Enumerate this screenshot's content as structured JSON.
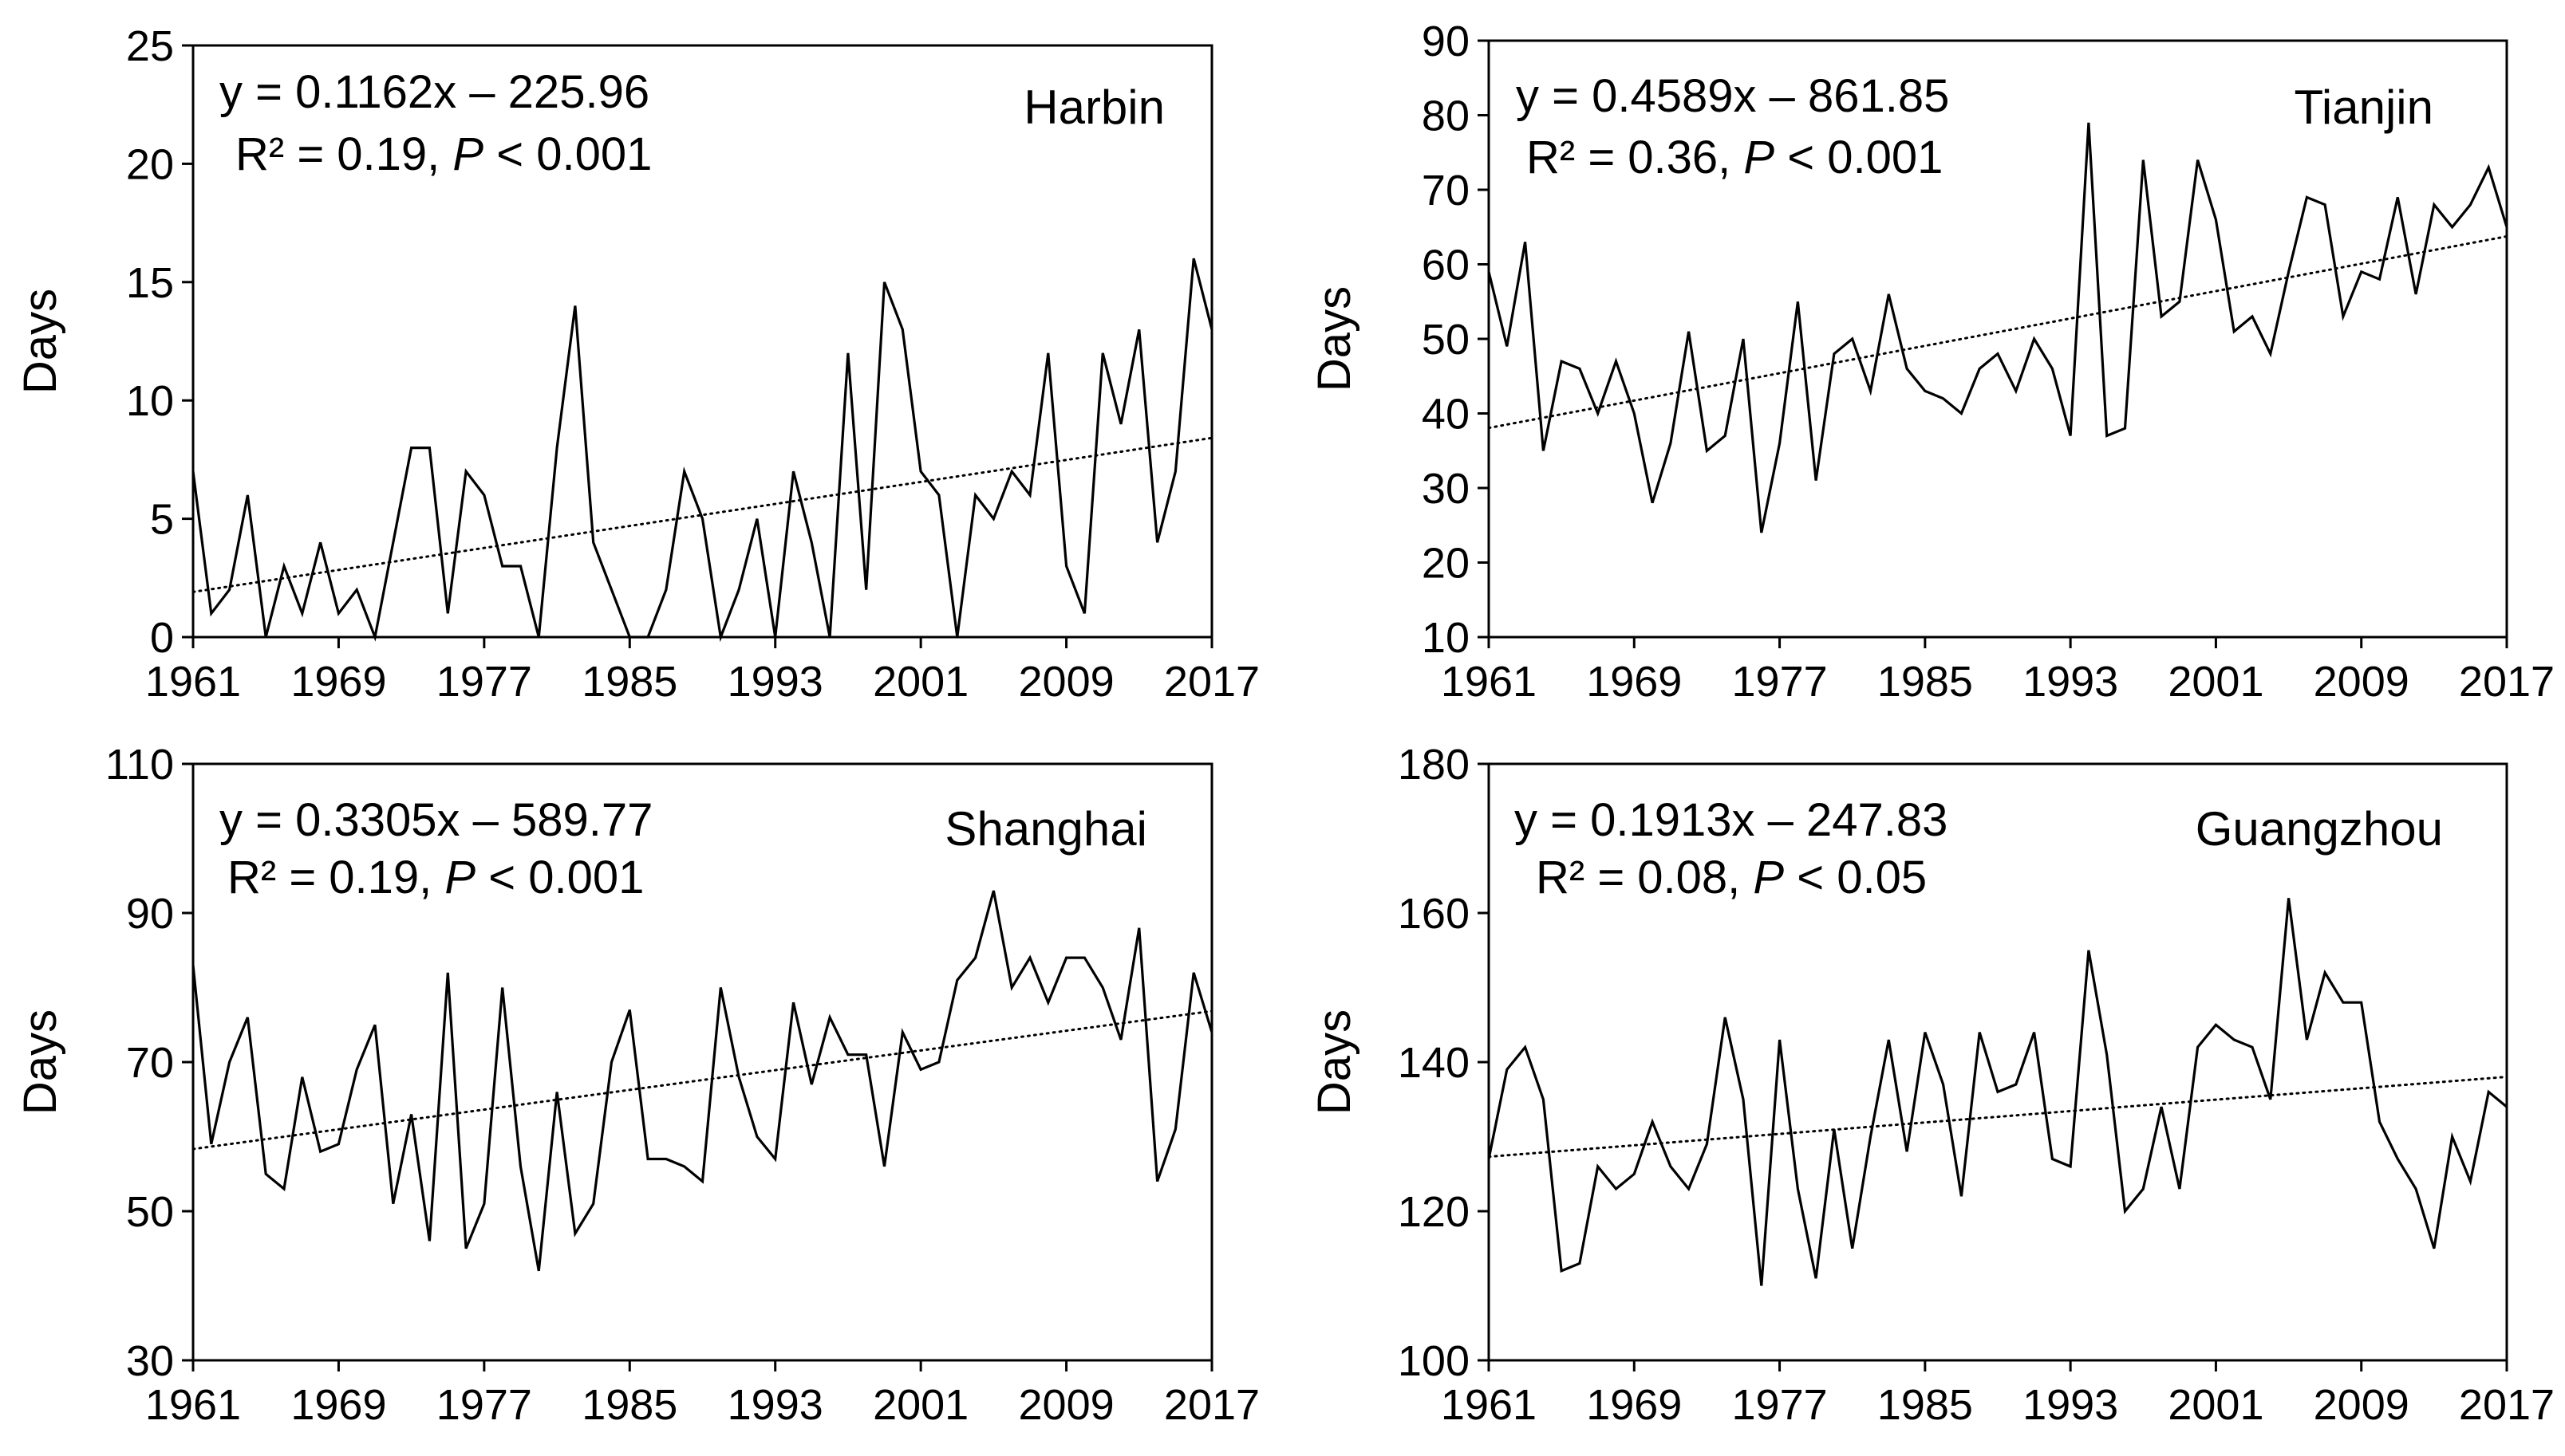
{
  "chart_data": [
    {
      "type": "line",
      "city": "Harbin",
      "ylabel": "Days",
      "xlabel": "",
      "equation": "y = 0.1162x – 225.96",
      "r2_text": "R² = 0.19, ",
      "p_symbol": "P",
      "p_text": " < 0.001",
      "trend": {
        "slope": 0.1162,
        "intercept": -225.96
      },
      "xlim": [
        1961,
        2017
      ],
      "ylim": [
        0,
        25
      ],
      "x_ticks": [
        1961,
        1969,
        1977,
        1985,
        1993,
        2001,
        2009,
        2017
      ],
      "x_tick_labels": [
        "1961",
        "1969",
        "1977",
        "1985",
        "1993",
        "2001",
        "2009",
        "2017"
      ],
      "y_ticks": [
        0,
        5,
        10,
        15,
        20,
        25
      ],
      "y_tick_labels": [
        "0",
        "5",
        "10",
        "15",
        "20",
        "25"
      ],
      "x": [
        1961,
        1962,
        1963,
        1964,
        1965,
        1966,
        1967,
        1968,
        1969,
        1970,
        1971,
        1972,
        1973,
        1974,
        1975,
        1976,
        1977,
        1978,
        1979,
        1980,
        1981,
        1982,
        1983,
        1984,
        1985,
        1986,
        1987,
        1988,
        1989,
        1990,
        1991,
        1992,
        1993,
        1994,
        1995,
        1996,
        1997,
        1998,
        1999,
        2000,
        2001,
        2002,
        2003,
        2004,
        2005,
        2006,
        2007,
        2008,
        2009,
        2010,
        2011,
        2012,
        2013,
        2014,
        2015,
        2016,
        2017
      ],
      "values": [
        7,
        1,
        2,
        6,
        0,
        3,
        1,
        4,
        1,
        2,
        0,
        4,
        8,
        8,
        1,
        7,
        6,
        3,
        3,
        0,
        8,
        14,
        4,
        2,
        0,
        0,
        2,
        7,
        5,
        0,
        2,
        5,
        0,
        7,
        4,
        0,
        12,
        2,
        15,
        13,
        7,
        6,
        0,
        6,
        5,
        7,
        6,
        12,
        3,
        1,
        12,
        9,
        13,
        4,
        7,
        16,
        13
      ]
    },
    {
      "type": "line",
      "city": "Tianjin",
      "ylabel": "Days",
      "xlabel": "",
      "equation": "y = 0.4589x – 861.85",
      "r2_text": "R² = 0.36, ",
      "p_symbol": "P",
      "p_text": " < 0.001",
      "trend": {
        "slope": 0.4589,
        "intercept": -861.85
      },
      "xlim": [
        1961,
        2017
      ],
      "ylim": [
        10,
        90
      ],
      "x_ticks": [
        1961,
        1969,
        1977,
        1985,
        1993,
        2001,
        2009,
        2017
      ],
      "x_tick_labels": [
        "1961",
        "1969",
        "1977",
        "1985",
        "1993",
        "2001",
        "2009",
        "2017"
      ],
      "y_ticks": [
        10,
        20,
        30,
        40,
        50,
        60,
        70,
        80,
        90
      ],
      "y_tick_labels": [
        "10",
        "20",
        "30",
        "40",
        "50",
        "60",
        "70",
        "80",
        "90"
      ],
      "x": [
        1961,
        1962,
        1963,
        1964,
        1965,
        1966,
        1967,
        1968,
        1969,
        1970,
        1971,
        1972,
        1973,
        1974,
        1975,
        1976,
        1977,
        1978,
        1979,
        1980,
        1981,
        1982,
        1983,
        1984,
        1985,
        1986,
        1987,
        1988,
        1989,
        1990,
        1991,
        1992,
        1993,
        1994,
        1995,
        1996,
        1997,
        1998,
        1999,
        2000,
        2001,
        2002,
        2003,
        2004,
        2005,
        2006,
        2007,
        2008,
        2009,
        2010,
        2011,
        2012,
        2013,
        2014,
        2015,
        2016,
        2017
      ],
      "values": [
        59,
        49,
        63,
        35,
        47,
        46,
        40,
        47,
        40,
        28,
        36,
        51,
        35,
        37,
        50,
        24,
        36,
        55,
        31,
        48,
        50,
        43,
        56,
        46,
        43,
        42,
        40,
        46,
        48,
        43,
        50,
        46,
        37,
        79,
        37,
        38,
        74,
        53,
        55,
        74,
        66,
        51,
        53,
        48,
        59,
        69,
        68,
        53,
        59,
        58,
        69,
        56,
        68,
        65,
        68,
        73,
        65
      ]
    },
    {
      "type": "line",
      "city": "Shanghai",
      "ylabel": "Days",
      "xlabel": "",
      "equation": "y = 0.3305x – 589.77",
      "r2_text": "R² = 0.19, ",
      "p_symbol": "P",
      "p_text": " < 0.001",
      "trend": {
        "slope": 0.3305,
        "intercept": -589.77
      },
      "xlim": [
        1961,
        2017
      ],
      "ylim": [
        30,
        110
      ],
      "x_ticks": [
        1961,
        1969,
        1977,
        1985,
        1993,
        2001,
        2009,
        2017
      ],
      "x_tick_labels": [
        "1961",
        "1969",
        "1977",
        "1985",
        "1993",
        "2001",
        "2009",
        "2017"
      ],
      "y_ticks": [
        30,
        50,
        70,
        90,
        110
      ],
      "y_tick_labels": [
        "30",
        "50",
        "70",
        "90",
        "110"
      ],
      "x": [
        1961,
        1962,
        1963,
        1964,
        1965,
        1966,
        1967,
        1968,
        1969,
        1970,
        1971,
        1972,
        1973,
        1974,
        1975,
        1976,
        1977,
        1978,
        1979,
        1980,
        1981,
        1982,
        1983,
        1984,
        1985,
        1986,
        1987,
        1988,
        1989,
        1990,
        1991,
        1992,
        1993,
        1994,
        1995,
        1996,
        1997,
        1998,
        1999,
        2000,
        2001,
        2002,
        2003,
        2004,
        2005,
        2006,
        2007,
        2008,
        2009,
        2010,
        2011,
        2012,
        2013,
        2014,
        2015,
        2016,
        2017
      ],
      "values": [
        83,
        59,
        70,
        76,
        55,
        53,
        68,
        58,
        59,
        69,
        75,
        51,
        63,
        46,
        82,
        45,
        51,
        80,
        56,
        42,
        66,
        47,
        51,
        70,
        77,
        57,
        57,
        56,
        54,
        80,
        68,
        60,
        57,
        78,
        67,
        76,
        71,
        71,
        56,
        74,
        69,
        70,
        81,
        84,
        93,
        80,
        84,
        78,
        84,
        84,
        80,
        73,
        88,
        54,
        61,
        82,
        74
      ]
    },
    {
      "type": "line",
      "city": "Guangzhou",
      "ylabel": "Days",
      "xlabel": "",
      "equation": "y = 0.1913x – 247.83",
      "r2_text": "R² = 0.08, ",
      "p_symbol": "P",
      "p_text": " < 0.05",
      "trend": {
        "slope": 0.1913,
        "intercept": -247.83
      },
      "xlim": [
        1961,
        2017
      ],
      "ylim": [
        100,
        180
      ],
      "x_ticks": [
        1961,
        1969,
        1977,
        1985,
        1993,
        2001,
        2009,
        2017
      ],
      "x_tick_labels": [
        "1961",
        "1969",
        "1977",
        "1985",
        "1993",
        "2001",
        "2009",
        "2017"
      ],
      "y_ticks": [
        100,
        120,
        140,
        160,
        180
      ],
      "y_tick_labels": [
        "100",
        "120",
        "140",
        "160",
        "180"
      ],
      "x": [
        1961,
        1962,
        1963,
        1964,
        1965,
        1966,
        1967,
        1968,
        1969,
        1970,
        1971,
        1972,
        1973,
        1974,
        1975,
        1976,
        1977,
        1978,
        1979,
        1980,
        1981,
        1982,
        1983,
        1984,
        1985,
        1986,
        1987,
        1988,
        1989,
        1990,
        1991,
        1992,
        1993,
        1994,
        1995,
        1996,
        1997,
        1998,
        1999,
        2000,
        2001,
        2002,
        2003,
        2004,
        2005,
        2006,
        2007,
        2008,
        2009,
        2010,
        2011,
        2012,
        2013,
        2014,
        2015,
        2016,
        2017
      ],
      "values": [
        127,
        139,
        142,
        135,
        112,
        113,
        126,
        123,
        125,
        132,
        126,
        123,
        129,
        146,
        135,
        110,
        143,
        123,
        111,
        131,
        115,
        130,
        143,
        128,
        144,
        137,
        122,
        144,
        136,
        137,
        144,
        127,
        126,
        155,
        141,
        120,
        123,
        134,
        123,
        142,
        145,
        143,
        142,
        135,
        162,
        143,
        152,
        148,
        148,
        132,
        127,
        123,
        115,
        130,
        124,
        136,
        134
      ]
    }
  ]
}
